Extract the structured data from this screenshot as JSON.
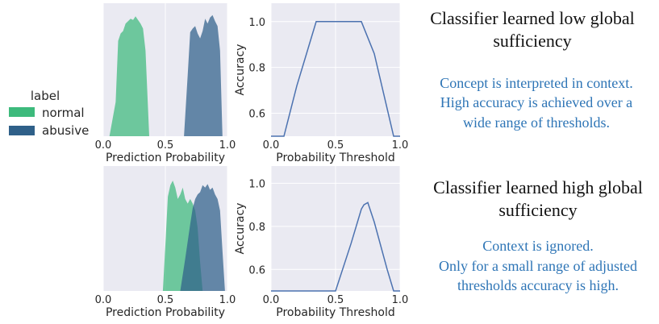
{
  "legend": {
    "title": "label",
    "items": [
      {
        "label": "normal",
        "color": "#3dba7c"
      },
      {
        "label": "abusive",
        "color": "#2f6089"
      }
    ]
  },
  "chart_data": [
    {
      "id": "dist_top",
      "type": "area",
      "title": "",
      "xlabel": "Prediction Probability",
      "ylabel": "",
      "xlim": [
        0,
        1
      ],
      "xticks": [
        "0.0",
        "0.5",
        "1.0"
      ],
      "grid": true,
      "series": [
        {
          "name": "normal",
          "color": "#3dba7c",
          "x": [
            0.05,
            0.1,
            0.12,
            0.14,
            0.16,
            0.18,
            0.2,
            0.22,
            0.24,
            0.26,
            0.28,
            0.3,
            0.32,
            0.34,
            0.37
          ],
          "y": [
            0.0,
            0.28,
            0.78,
            0.84,
            0.86,
            0.92,
            0.94,
            0.96,
            0.95,
            0.98,
            0.95,
            0.92,
            0.88,
            0.7,
            0.0
          ]
        },
        {
          "name": "abusive",
          "color": "#2f6089",
          "x": [
            0.65,
            0.68,
            0.7,
            0.72,
            0.74,
            0.76,
            0.78,
            0.8,
            0.82,
            0.84,
            0.86,
            0.88,
            0.9,
            0.92,
            0.94,
            0.96
          ],
          "y": [
            0.0,
            0.5,
            0.85,
            0.88,
            0.9,
            0.84,
            0.8,
            0.86,
            0.96,
            0.92,
            0.97,
            0.99,
            0.94,
            0.9,
            0.7,
            0.0
          ]
        }
      ]
    },
    {
      "id": "acc_top",
      "type": "line",
      "title": "",
      "xlabel": "Probability Threshold",
      "ylabel": "Accuracy",
      "xlim": [
        0,
        1
      ],
      "ylim": [
        0.5,
        1.08
      ],
      "xticks": [
        "0.0",
        "0.5",
        "1.0"
      ],
      "yticks": [
        "0.6",
        "0.8",
        "1.0"
      ],
      "grid": true,
      "series": [
        {
          "name": "",
          "color": "#4c72b0",
          "x": [
            0.0,
            0.1,
            0.2,
            0.35,
            0.5,
            0.7,
            0.8,
            0.95,
            1.0
          ],
          "y": [
            0.5,
            0.5,
            0.72,
            1.0,
            1.0,
            1.0,
            0.86,
            0.5,
            0.5
          ]
        }
      ]
    },
    {
      "id": "dist_bottom",
      "type": "area",
      "title": "",
      "xlabel": "Prediction Probability",
      "ylabel": "",
      "xlim": [
        0,
        1
      ],
      "xticks": [
        "0.0",
        "0.5",
        "1.0"
      ],
      "grid": true,
      "series": [
        {
          "name": "normal",
          "color": "#3dba7c",
          "x": [
            0.48,
            0.5,
            0.52,
            0.54,
            0.56,
            0.58,
            0.6,
            0.62,
            0.64,
            0.66,
            0.68,
            0.7,
            0.72,
            0.74,
            0.76,
            0.78,
            0.8
          ],
          "y": [
            0.0,
            0.4,
            0.82,
            0.92,
            0.96,
            0.9,
            0.8,
            0.84,
            0.9,
            0.8,
            0.76,
            0.8,
            0.76,
            0.7,
            0.55,
            0.25,
            0.0
          ]
        },
        {
          "name": "abusive",
          "color": "#2f6089",
          "x": [
            0.62,
            0.66,
            0.7,
            0.72,
            0.74,
            0.76,
            0.78,
            0.8,
            0.82,
            0.84,
            0.86,
            0.88,
            0.9,
            0.92,
            0.94,
            0.96,
            0.98
          ],
          "y": [
            0.0,
            0.28,
            0.58,
            0.72,
            0.8,
            0.84,
            0.86,
            0.92,
            0.9,
            0.93,
            0.88,
            0.9,
            0.84,
            0.8,
            0.7,
            0.35,
            0.0
          ]
        }
      ]
    },
    {
      "id": "acc_bottom",
      "type": "line",
      "title": "",
      "xlabel": "Probability Threshold",
      "ylabel": "Accuracy",
      "xlim": [
        0,
        1
      ],
      "ylim": [
        0.5,
        1.08
      ],
      "xticks": [
        "0.0",
        "0.5",
        "1.0"
      ],
      "yticks": [
        "0.6",
        "0.8",
        "1.0"
      ],
      "grid": true,
      "series": [
        {
          "name": "",
          "color": "#4c72b0",
          "x": [
            0.0,
            0.5,
            0.62,
            0.7,
            0.72,
            0.75,
            0.8,
            0.9,
            0.95,
            1.0
          ],
          "y": [
            0.5,
            0.5,
            0.72,
            0.88,
            0.9,
            0.91,
            0.82,
            0.6,
            0.5,
            0.5
          ]
        }
      ]
    }
  ],
  "captions": {
    "top": {
      "heading": [
        "Classifier learned low global",
        "sufficiency"
      ],
      "body": [
        "Concept is interpreted in context.",
        "High accuracy is achieved over a",
        "wide range of thresholds."
      ]
    },
    "bottom": {
      "heading": [
        "Classifier learned high global",
        "sufficiency"
      ],
      "body": [
        "Context is ignored.",
        "Only for a small range of adjusted",
        "thresholds accuracy is high."
      ]
    }
  }
}
